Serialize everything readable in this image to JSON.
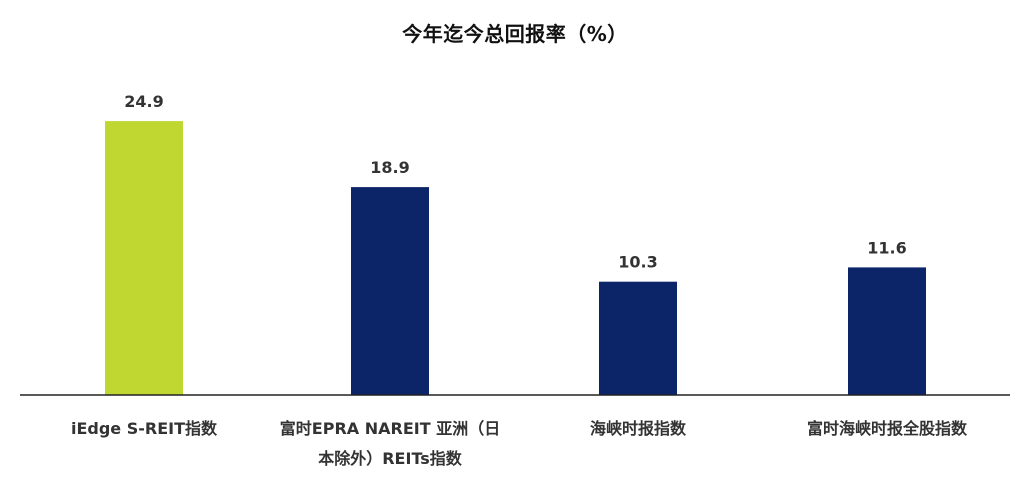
{
  "chart_data": {
    "type": "bar",
    "title": "今年迄今总回报率（%）",
    "categories": [
      [
        "iEdge S-REIT指数"
      ],
      [
        "富时EPRA NAREIT 亚洲（日",
        "本除外）REITs指数"
      ],
      [
        "海峡时报指数"
      ],
      [
        "富时海峡时报全股指数"
      ]
    ],
    "values": [
      24.9,
      18.9,
      10.3,
      11.6
    ],
    "data_labels": [
      "24.9",
      "18.9",
      "10.3",
      "11.6"
    ],
    "colors": [
      "#BFD730",
      "#0C2468",
      "#0C2468",
      "#0C2468"
    ],
    "ylim": [
      0,
      30
    ],
    "grid": false,
    "legend": "none",
    "xlabel": "",
    "ylabel": ""
  }
}
